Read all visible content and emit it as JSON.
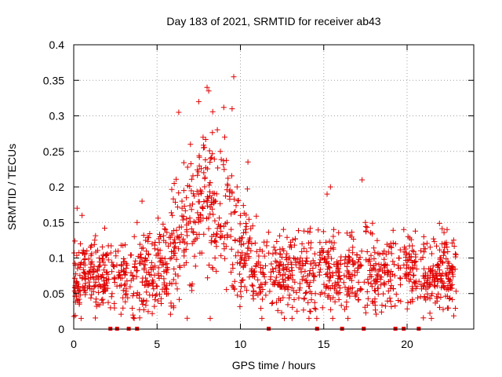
{
  "chart_data": {
    "type": "scatter",
    "title": "Day 183 of 2021, SRMTID for receiver ab43",
    "xlabel": "GPS time / hours",
    "ylabel": "SRMTID / TECUs",
    "xlim": [
      0,
      24
    ],
    "ylim": [
      0,
      0.4
    ],
    "x_ticks": [
      0,
      5,
      10,
      15,
      20
    ],
    "x_tick_labels": [
      "0",
      "5",
      "10",
      "15",
      "20"
    ],
    "y_ticks": [
      0,
      0.05,
      0.1,
      0.15,
      0.2,
      0.25,
      0.3,
      0.35,
      0.4
    ],
    "y_tick_labels": [
      "0",
      "0.05",
      "0.1",
      "0.15",
      "0.2",
      "0.25",
      "0.3",
      "0.35",
      "0.4"
    ],
    "grid": true,
    "marker": "plus",
    "color": "#e00000",
    "hour_range": [
      0,
      23
    ],
    "series": [
      {
        "name": "SRMTID",
        "x": [
          0.1,
          0.2,
          0.3,
          0.4,
          0.5,
          0.6,
          0.7,
          1.2,
          1.6,
          2.1,
          2.2,
          2.3,
          2.7,
          3.2,
          3.6,
          3.8,
          4.1,
          4.3,
          4.5,
          4.7,
          5.0,
          5.3,
          5.5,
          5.8,
          6.0,
          6.3,
          6.5,
          6.8,
          7.0,
          7.3,
          7.5,
          7.8,
          8.0,
          8.1,
          8.2,
          8.5,
          8.8,
          9.0,
          9.2,
          9.5,
          9.6,
          9.8,
          10.0,
          10.3,
          10.5,
          10.8,
          11.2,
          11.8,
          12.3,
          12.8,
          13.2,
          13.7,
          14.1,
          14.5,
          14.9,
          15.2,
          15.4,
          15.6,
          16.0,
          16.5,
          17.0,
          17.3,
          17.5,
          17.9,
          18.4,
          18.8,
          19.5,
          19.8,
          20.2,
          20.6,
          21.0,
          21.5,
          21.8,
          22.1,
          22.4,
          22.7
        ],
        "y": [
          0.09,
          0.17,
          0.06,
          0.12,
          0.16,
          0.08,
          0.07,
          0.08,
          0.06,
          0.07,
          0.03,
          0.05,
          0.08,
          0.09,
          0.05,
          0.15,
          0.18,
          0.1,
          0.08,
          0.12,
          0.06,
          0.1,
          0.14,
          0.12,
          0.11,
          0.305,
          0.17,
          0.12,
          0.26,
          0.15,
          0.32,
          0.22,
          0.34,
          0.335,
          0.24,
          0.18,
          0.25,
          0.12,
          0.15,
          0.31,
          0.355,
          0.2,
          0.16,
          0.14,
          0.1,
          0.08,
          0.09,
          0.07,
          0.08,
          0.06,
          0.1,
          0.12,
          0.06,
          0.05,
          0.1,
          0.19,
          0.2,
          0.14,
          0.07,
          0.05,
          0.08,
          0.21,
          0.15,
          0.06,
          0.07,
          0.09,
          0.1,
          0.14,
          0.07,
          0.06,
          0.13,
          0.05,
          0.09,
          0.12,
          0.14,
          0.08
        ]
      }
    ],
    "gap_markers_x": [
      2.2,
      2.6,
      3.3,
      3.8,
      11.7,
      14.6,
      16.1,
      17.4,
      19.3,
      19.8,
      20.7
    ]
  }
}
